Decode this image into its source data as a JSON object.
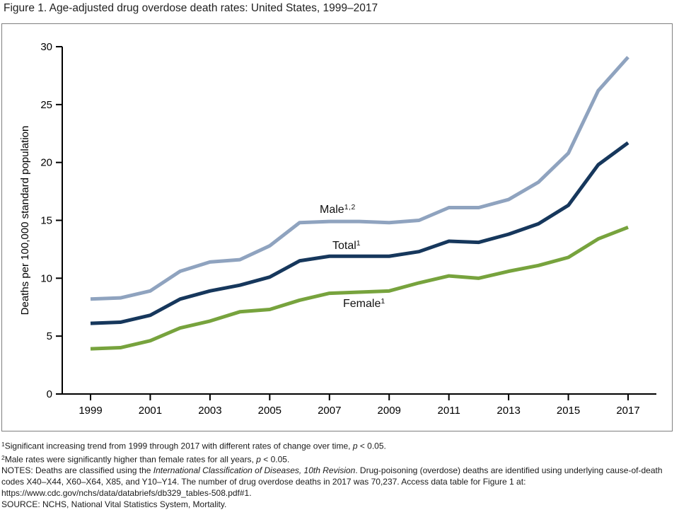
{
  "figure": {
    "title": "Figure 1. Age-adjusted drug overdose death rates: United States, 1999–2017"
  },
  "chart_data": {
    "type": "line",
    "title": "Age-adjusted drug overdose death rates: United States, 1999–2017",
    "xlabel": "",
    "ylabel": "Deaths per 100,000 standard population",
    "ylim": [
      0,
      30
    ],
    "yticks": [
      0,
      5,
      10,
      15,
      20,
      25,
      30
    ],
    "xticks": [
      1999,
      2001,
      2003,
      2005,
      2007,
      2009,
      2011,
      2013,
      2015,
      2017
    ],
    "x": [
      1999,
      2000,
      2001,
      2002,
      2003,
      2004,
      2005,
      2006,
      2007,
      2008,
      2009,
      2010,
      2011,
      2012,
      2013,
      2014,
      2015,
      2016,
      2017
    ],
    "grid": false,
    "legend_position": "inline-labels",
    "series": [
      {
        "name": "Male",
        "label": "Male",
        "label_sup": "1,2",
        "color": "#8FA3BF",
        "values": [
          8.2,
          8.3,
          8.9,
          10.6,
          11.4,
          11.6,
          12.8,
          14.8,
          14.9,
          14.9,
          14.8,
          15.0,
          16.1,
          16.1,
          16.8,
          18.3,
          20.8,
          26.2,
          29.1
        ]
      },
      {
        "name": "Total",
        "label": "Total",
        "label_sup": "1",
        "color": "#16375C",
        "values": [
          6.1,
          6.2,
          6.8,
          8.2,
          8.9,
          9.4,
          10.1,
          11.5,
          11.9,
          11.9,
          11.9,
          12.3,
          13.2,
          13.1,
          13.8,
          14.7,
          16.3,
          19.8,
          21.7
        ]
      },
      {
        "name": "Female",
        "label": "Female",
        "label_sup": "1",
        "color": "#77A33D",
        "values": [
          3.9,
          4.0,
          4.6,
          5.7,
          6.3,
          7.1,
          7.3,
          8.1,
          8.7,
          8.8,
          8.9,
          9.6,
          10.2,
          10.0,
          10.6,
          11.1,
          11.8,
          13.4,
          14.4
        ]
      }
    ],
    "axis_color": "#000000"
  },
  "footnotes": {
    "lines": [
      {
        "segments": [
          {
            "text": "1",
            "sup": true
          },
          {
            "text": "Significant increasing trend from 1999 through 2017 with different rates of change over time, "
          },
          {
            "text": "p",
            "italic": true
          },
          {
            "text": " < 0.05."
          }
        ]
      },
      {
        "segments": [
          {
            "text": "2",
            "sup": true
          },
          {
            "text": "Male rates were significantly higher than female rates for all years, "
          },
          {
            "text": "p",
            "italic": true
          },
          {
            "text": " < 0.05."
          }
        ]
      },
      {
        "segments": [
          {
            "text": "NOTES: Deaths are classified using the "
          },
          {
            "text": "International Classification of Diseases, 10th Revision",
            "italic": true
          },
          {
            "text": ". Drug-poisoning (overdose) deaths are identified using underlying cause-of-death codes X40–X44, X60–X64, X85, and Y10–Y14. The number of drug overdose deaths in 2017 was 70,237. Access data table for Figure 1 at: https://www.cdc.gov/nchs/data/databriefs/db329_tables-508.pdf#1."
          }
        ]
      },
      {
        "segments": [
          {
            "text": "SOURCE: NCHS, National Vital Statistics System, Mortality."
          }
        ]
      }
    ]
  }
}
